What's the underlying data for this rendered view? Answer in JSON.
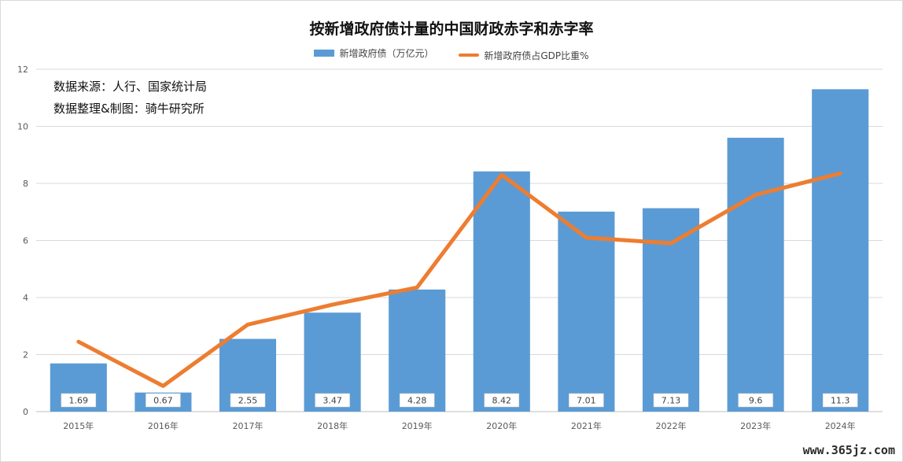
{
  "chart_data": {
    "type": "bar",
    "title": "按新增政府债计量的中国财政赤字和赤字率",
    "categories": [
      "2015年",
      "2016年",
      "2017年",
      "2018年",
      "2019年",
      "2020年",
      "2021年",
      "2022年",
      "2023年",
      "2024年"
    ],
    "series": [
      {
        "name": "新增政府债（万亿元）",
        "type": "bar",
        "color": "#5b9bd5",
        "values": [
          1.69,
          0.67,
          2.55,
          3.47,
          4.28,
          8.42,
          7.01,
          7.13,
          9.6,
          11.3
        ]
      },
      {
        "name": "新增政府债占GDP比重%",
        "type": "line",
        "color": "#ed7d31",
        "values": [
          2.45,
          0.9,
          3.05,
          3.75,
          4.35,
          8.3,
          6.1,
          5.9,
          7.6,
          8.35
        ]
      }
    ],
    "data_labels": [
      "1.69",
      "0.67",
      "2.55",
      "3.47",
      "4.28",
      "8.42",
      "7.01",
      "7.13",
      "9.6",
      "11.3"
    ],
    "ylim": [
      0,
      12
    ],
    "yticks": [
      "0",
      "2",
      "4",
      "6",
      "8",
      "10",
      "12"
    ],
    "grid": true,
    "legend_position": "top"
  },
  "annotation": {
    "line1": "数据来源：人行、国家统计局",
    "line2": "数据整理&制图：骑牛研究所"
  },
  "watermark": "www.365jz.com"
}
